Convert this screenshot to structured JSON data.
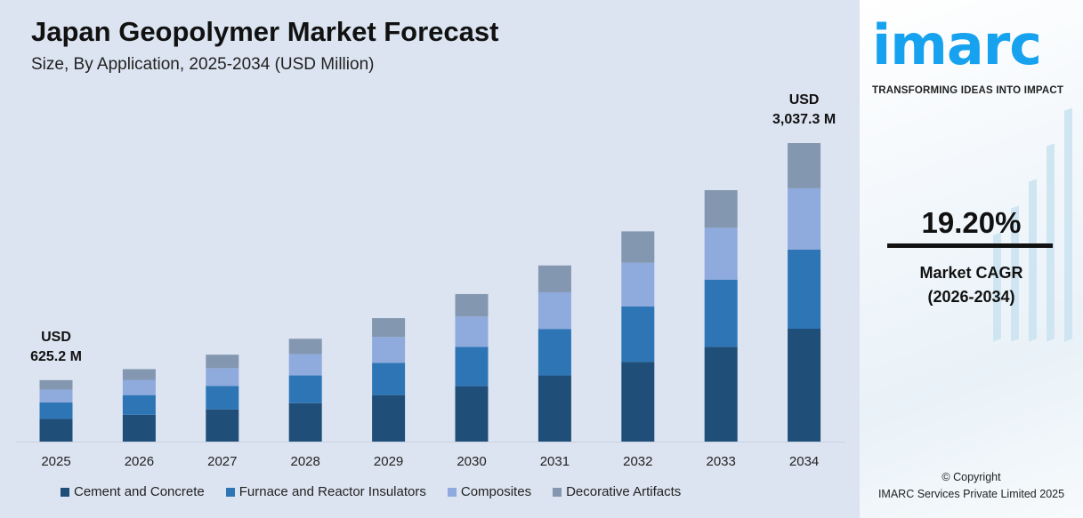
{
  "chart_data": {
    "type": "bar",
    "stacked": true,
    "title": "Japan Geopolymer Market Forecast",
    "subtitle": "Size, By Application, 2025-2034 (USD Million)",
    "categories": [
      "2025",
      "2026",
      "2027",
      "2028",
      "2029",
      "2030",
      "2031",
      "2032",
      "2033",
      "2034"
    ],
    "series": [
      {
        "name": "Cement and Concrete",
        "color": "#1f4e79",
        "values": [
          232,
          273,
          328,
          391,
          473,
          564,
          673,
          810,
          965,
          1148
        ]
      },
      {
        "name": "Furnace and Reactor Insulators",
        "color": "#2e75b6",
        "values": [
          166,
          200,
          237,
          282,
          328,
          400,
          473,
          564,
          683,
          805
        ]
      },
      {
        "name": "Composites",
        "color": "#8faadc",
        "values": [
          130,
          155,
          182,
          218,
          264,
          309,
          373,
          446,
          528,
          624
        ]
      },
      {
        "name": "Decorative Artifacts",
        "color": "#8497b0",
        "values": [
          97,
          109,
          137,
          155,
          191,
          228,
          273,
          319,
          382,
          460
        ]
      }
    ],
    "annotations": [
      {
        "category": "2025",
        "line1": "USD",
        "line2": "625.2 M"
      },
      {
        "category": "2034",
        "line1": "USD",
        "line2": "3,037.3 M"
      }
    ],
    "ylim": [
      0,
      3037.3
    ],
    "grid": false,
    "legend": "bottom"
  },
  "side": {
    "logo": "imarc",
    "tagline": "TRANSFORMING IDEAS INTO IMPACT",
    "cagr_value": "19.20%",
    "cagr_label": "Market CAGR",
    "cagr_period": "(2026-2034)",
    "copyright": "© Copyright",
    "company": "IMARC Services Private Limited 2025",
    "brand_color": "#17a2f0"
  }
}
